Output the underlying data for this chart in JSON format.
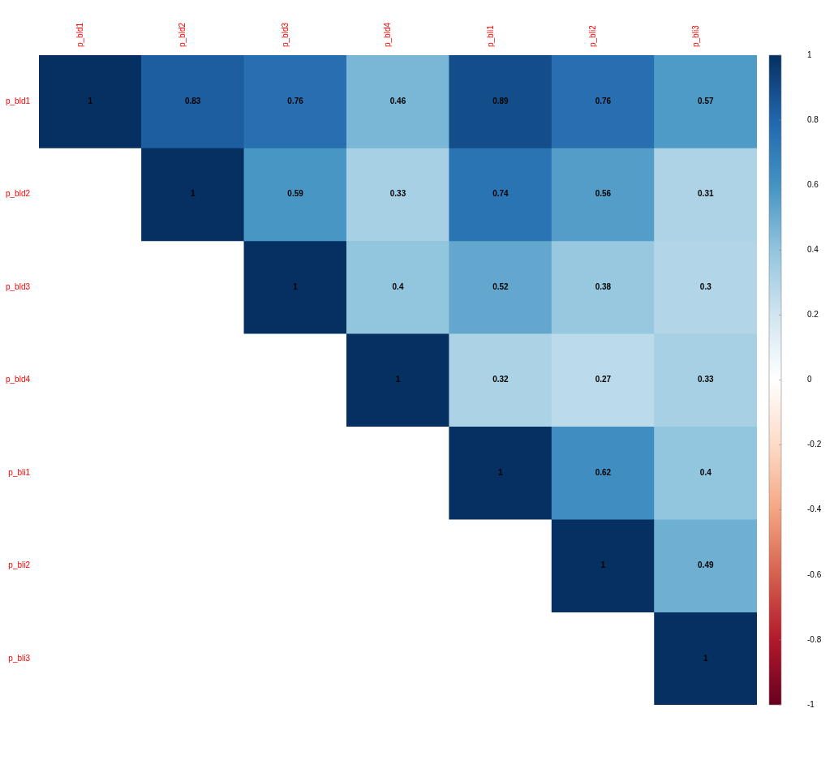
{
  "chart_data": {
    "type": "heatmap",
    "categories": [
      "p_bld1",
      "p_bld2",
      "p_bld3",
      "p_bld4",
      "p_bli1",
      "p_bli2",
      "p_bli3"
    ],
    "y_categories": [
      "p_bld1",
      "p_bld2",
      "p_bld3",
      "p_bld4",
      "p_bli1",
      "p_bli2",
      "p_bli3"
    ],
    "cells": [
      [
        1,
        0.83,
        0.76,
        0.46,
        0.89,
        0.76,
        0.57
      ],
      [
        null,
        1,
        0.59,
        0.33,
        0.74,
        0.56,
        0.31
      ],
      [
        null,
        null,
        1,
        0.4,
        0.52,
        0.38,
        0.3
      ],
      [
        null,
        null,
        null,
        1,
        0.32,
        0.27,
        0.33
      ],
      [
        null,
        null,
        null,
        null,
        1,
        0.62,
        0.4
      ],
      [
        null,
        null,
        null,
        null,
        null,
        1,
        0.49
      ],
      [
        null,
        null,
        null,
        null,
        null,
        null,
        1
      ]
    ],
    "data_labels": true,
    "clim": [
      -1,
      1
    ],
    "cticks": [
      -1,
      -0.8,
      -0.6,
      -0.4,
      -0.2,
      0,
      0.2,
      0.4,
      0.6,
      0.8,
      1
    ]
  }
}
